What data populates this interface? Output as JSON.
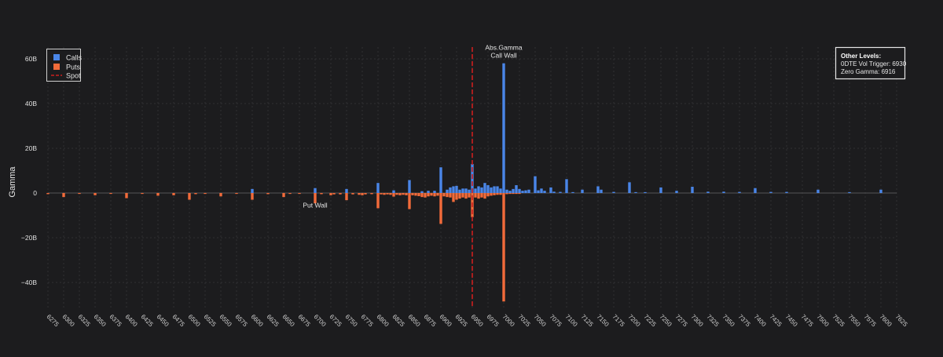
{
  "chart_data": {
    "type": "bar",
    "ylabel": "Gamma",
    "ylim": [
      -52,
      66
    ],
    "yticks": [
      60,
      40,
      20,
      0,
      -20,
      -40
    ],
    "ytick_labels": [
      "60B",
      "40B",
      "20B",
      "0",
      "−20B",
      "−40B"
    ],
    "x_start": 6275,
    "x_end": 7625,
    "x_tick_step": 25,
    "legend": {
      "position": "top-left",
      "items": [
        {
          "label": "Calls",
          "color": "#4a86e8",
          "kind": "box"
        },
        {
          "label": "Puts",
          "color": "#f26b3a",
          "kind": "box"
        },
        {
          "label": "Spot",
          "color": "#cc1f1f",
          "kind": "dash"
        }
      ]
    },
    "spot": 6950,
    "colors": {
      "calls": "#4a86e8",
      "puts": "#f26b3a",
      "spot": "#cc1f1f",
      "grid": "#2f2f33",
      "bg": "#1c1c1e"
    },
    "calls": [
      [
        6600,
        1.8
      ],
      [
        6700,
        2.2
      ],
      [
        6750,
        1.8
      ],
      [
        6800,
        4.5
      ],
      [
        6825,
        1.2
      ],
      [
        6850,
        5.8
      ],
      [
        6870,
        0.8
      ],
      [
        6880,
        1.0
      ],
      [
        6890,
        1.0
      ],
      [
        6900,
        11.5
      ],
      [
        6910,
        1.5
      ],
      [
        6915,
        2.5
      ],
      [
        6920,
        3.0
      ],
      [
        6925,
        3.2
      ],
      [
        6930,
        1.5
      ],
      [
        6935,
        2.0
      ],
      [
        6940,
        2.0
      ],
      [
        6945,
        1.5
      ],
      [
        6950,
        13.0
      ],
      [
        6955,
        2.0
      ],
      [
        6960,
        3.0
      ],
      [
        6965,
        2.5
      ],
      [
        6970,
        4.5
      ],
      [
        6975,
        3.5
      ],
      [
        6980,
        2.5
      ],
      [
        6985,
        3.0
      ],
      [
        6990,
        3.0
      ],
      [
        6995,
        2.0
      ],
      [
        7000,
        58.0
      ],
      [
        7005,
        1.5
      ],
      [
        7010,
        1.0
      ],
      [
        7015,
        1.8
      ],
      [
        7020,
        3.5
      ],
      [
        7025,
        1.8
      ],
      [
        7030,
        1.0
      ],
      [
        7035,
        1.2
      ],
      [
        7040,
        1.5
      ],
      [
        7050,
        7.5
      ],
      [
        7055,
        1.2
      ],
      [
        7060,
        2.0
      ],
      [
        7065,
        1.0
      ],
      [
        7075,
        2.5
      ],
      [
        7080,
        0.6
      ],
      [
        7090,
        0.5
      ],
      [
        7100,
        6.2
      ],
      [
        7110,
        0.4
      ],
      [
        7125,
        1.5
      ],
      [
        7150,
        3.0
      ],
      [
        7155,
        1.5
      ],
      [
        7175,
        0.5
      ],
      [
        7200,
        4.8
      ],
      [
        7210,
        0.4
      ],
      [
        7225,
        0.4
      ],
      [
        7250,
        2.5
      ],
      [
        7275,
        1.0
      ],
      [
        7300,
        2.8
      ],
      [
        7325,
        0.6
      ],
      [
        7350,
        0.6
      ],
      [
        7375,
        0.5
      ],
      [
        7400,
        2.2
      ],
      [
        7425,
        0.5
      ],
      [
        7450,
        0.5
      ],
      [
        7500,
        1.5
      ],
      [
        7550,
        0.4
      ],
      [
        7600,
        1.5
      ]
    ],
    "puts": [
      [
        6275,
        -0.5
      ],
      [
        6300,
        -1.8
      ],
      [
        6325,
        -0.4
      ],
      [
        6350,
        -1.0
      ],
      [
        6375,
        -0.4
      ],
      [
        6400,
        -2.3
      ],
      [
        6425,
        -0.4
      ],
      [
        6450,
        -1.2
      ],
      [
        6475,
        -1.0
      ],
      [
        6500,
        -3.0
      ],
      [
        6510,
        -0.5
      ],
      [
        6525,
        -0.4
      ],
      [
        6550,
        -1.5
      ],
      [
        6575,
        -0.4
      ],
      [
        6600,
        -3.0
      ],
      [
        6625,
        -0.5
      ],
      [
        6650,
        -1.8
      ],
      [
        6660,
        -0.4
      ],
      [
        6675,
        -0.4
      ],
      [
        6700,
        -4.6
      ],
      [
        6710,
        -0.5
      ],
      [
        6725,
        -1.0
      ],
      [
        6730,
        -0.6
      ],
      [
        6740,
        -0.6
      ],
      [
        6750,
        -3.2
      ],
      [
        6760,
        -0.6
      ],
      [
        6770,
        -0.8
      ],
      [
        6775,
        -1.0
      ],
      [
        6780,
        -0.6
      ],
      [
        6790,
        -0.5
      ],
      [
        6800,
        -6.8
      ],
      [
        6805,
        -0.6
      ],
      [
        6810,
        -0.8
      ],
      [
        6815,
        -0.6
      ],
      [
        6820,
        -0.8
      ],
      [
        6825,
        -1.6
      ],
      [
        6830,
        -0.8
      ],
      [
        6835,
        -1.0
      ],
      [
        6840,
        -0.8
      ],
      [
        6845,
        -1.0
      ],
      [
        6850,
        -7.2
      ],
      [
        6855,
        -1.0
      ],
      [
        6860,
        -1.2
      ],
      [
        6865,
        -1.4
      ],
      [
        6870,
        -1.8
      ],
      [
        6875,
        -2.0
      ],
      [
        6880,
        -1.5
      ],
      [
        6885,
        -1.2
      ],
      [
        6890,
        -1.5
      ],
      [
        6895,
        -1.2
      ],
      [
        6900,
        -13.8
      ],
      [
        6905,
        -1.5
      ],
      [
        6910,
        -1.8
      ],
      [
        6915,
        -2.0
      ],
      [
        6920,
        -4.0
      ],
      [
        6925,
        -3.0
      ],
      [
        6930,
        -2.5
      ],
      [
        6935,
        -2.0
      ],
      [
        6940,
        -2.5
      ],
      [
        6945,
        -2.0
      ],
      [
        6950,
        -10.8
      ],
      [
        6955,
        -2.0
      ],
      [
        6960,
        -2.5
      ],
      [
        6965,
        -2.0
      ],
      [
        6970,
        -2.5
      ],
      [
        6975,
        -1.5
      ],
      [
        6980,
        -1.2
      ],
      [
        6985,
        -1.0
      ],
      [
        6990,
        -0.8
      ],
      [
        6995,
        -0.8
      ],
      [
        7000,
        -48.5
      ],
      [
        7005,
        -0.5
      ],
      [
        7010,
        -0.4
      ],
      [
        7015,
        -0.4
      ],
      [
        7020,
        -0.4
      ],
      [
        7025,
        -0.4
      ]
    ],
    "annotations": [
      {
        "name": "put-wall-annotation",
        "lines": [
          "Put Wall"
        ],
        "x": 6700,
        "y": -6.5
      },
      {
        "name": "call-wall-annotation",
        "lines": [
          "Abs.Gamma",
          "Call Wall"
        ],
        "x": 7000,
        "y": 60.5
      }
    ],
    "info_box": {
      "title": "Other Levels:",
      "lines": [
        "0DTE Vol Trigger: 6930",
        "Zero Gamma: 6916"
      ]
    }
  }
}
